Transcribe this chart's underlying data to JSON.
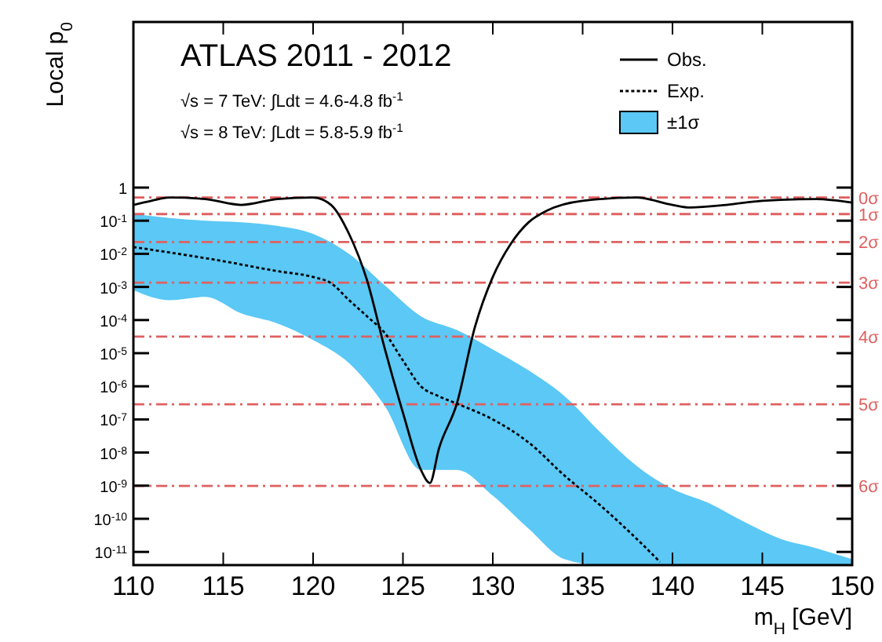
{
  "chart_data": {
    "type": "line",
    "xlabel": "m$_{H}$ [GeV]",
    "ylabel": "Local p$_{0}$",
    "log": "y",
    "grid": false,
    "legend": "top right",
    "xlim": [
      110,
      150
    ],
    "xticks": [
      110,
      115,
      120,
      125,
      130,
      135,
      140,
      145,
      150
    ],
    "ylim": [
      4e-12,
      100000.0
    ],
    "yticks": [
      {
        "value": 1,
        "label": "1"
      },
      {
        "value": 0.1,
        "label": "10$^{-1}$"
      },
      {
        "value": 0.01,
        "label": "10$^{-2}$"
      },
      {
        "value": 0.001,
        "label": "10$^{-3}$"
      },
      {
        "value": 0.0001,
        "label": "10$^{-4}$"
      },
      {
        "value": 1e-05,
        "label": "10$^{-5}$"
      },
      {
        "value": 1e-06,
        "label": "10$^{-6}$"
      },
      {
        "value": 1e-07,
        "label": "10$^{-7}$"
      },
      {
        "value": 1e-08,
        "label": "10$^{-8}$"
      },
      {
        "value": 1e-09,
        "label": "10$^{-9}$"
      },
      {
        "value": 1e-10,
        "label": "10$^{-10}$"
      },
      {
        "value": 1e-11,
        "label": "10$^{-11}$"
      }
    ],
    "series": [
      {
        "name": "±1σ",
        "type": "area",
        "color": "#5bc8f5",
        "x": [
          110,
          112,
          114,
          116,
          118,
          120,
          122,
          124,
          126,
          128,
          130,
          132,
          134,
          136,
          138,
          139.3,
          140,
          142,
          144,
          146,
          148,
          150
        ],
        "values": [
          null,
          null,
          null,
          null,
          null,
          null,
          null,
          null,
          null,
          null,
          null,
          null,
          null,
          null,
          null,
          null,
          null,
          null,
          null,
          null,
          null,
          null
        ],
        "upper": [
          0.16,
          0.12,
          0.1,
          0.09,
          0.07,
          0.04,
          0.01,
          0.0011,
          0.00013,
          5e-05,
          1.3e-05,
          3e-06,
          5e-07,
          4e-08,
          4e-09,
          1.3e-09,
          8e-10,
          3e-10,
          8e-11,
          2.5e-11,
          1.3e-11,
          6e-12
        ],
        "lower": [
          0.0008,
          0.0004,
          0.0005,
          0.00016,
          8e-05,
          2.5e-05,
          5e-06,
          2.5e-07,
          3e-09,
          3e-09,
          5e-10,
          5e-11,
          6e-12,
          4e-12,
          4e-12,
          4e-12,
          4e-12,
          4e-12,
          4e-12,
          4e-12,
          4e-12,
          4e-12
        ]
      },
      {
        "name": "Exp.",
        "color": "#000000",
        "line_style": "dotted",
        "x": [
          110,
          112,
          115,
          118,
          120,
          121,
          122,
          123,
          124,
          125,
          126,
          127,
          128,
          130,
          132,
          134,
          136,
          138,
          139.3
        ],
        "values": [
          0.016,
          0.011,
          0.006,
          0.003,
          0.002,
          0.0013,
          0.0004,
          0.00013,
          4e-05,
          6e-06,
          1e-06,
          5e-07,
          3e-07,
          1e-07,
          2e-08,
          2e-09,
          2.5e-10,
          2.5e-11,
          5e-12
        ]
      },
      {
        "name": "Obs.",
        "color": "#000000",
        "line_style": "solid",
        "x": [
          110,
          111,
          112,
          114,
          116,
          118,
          120,
          121,
          122,
          123,
          124,
          125,
          126,
          126.5,
          127,
          128,
          129,
          130,
          131,
          132,
          133,
          135,
          138,
          140,
          141,
          143,
          145,
          148,
          150
        ],
        "values": [
          0.3,
          0.4,
          0.5,
          0.45,
          0.3,
          0.45,
          0.5,
          0.3,
          0.04,
          0.0016,
          1.3e-05,
          1.6e-07,
          3e-09,
          1.2e-09,
          1.3e-08,
          3e-07,
          6e-05,
          0.002,
          0.02,
          0.09,
          0.2,
          0.4,
          0.5,
          0.3,
          0.25,
          0.3,
          0.4,
          0.45,
          0.35
        ]
      }
    ],
    "ref_lines": [
      {
        "axis": "y",
        "value": 0.5,
        "label": "0σ",
        "color": "#e06060",
        "line_style": "dashed"
      },
      {
        "axis": "y",
        "value": 0.1587,
        "label": "1σ",
        "color": "#e06060",
        "line_style": "dashed"
      },
      {
        "axis": "y",
        "value": 0.02275,
        "label": "2σ",
        "color": "#e06060",
        "line_style": "dashed"
      },
      {
        "axis": "y",
        "value": 0.00135,
        "label": "3σ",
        "color": "#e06060",
        "line_style": "dashed"
      },
      {
        "axis": "y",
        "value": 3.17e-05,
        "label": "4σ",
        "color": "#e06060",
        "line_style": "dashed"
      },
      {
        "axis": "y",
        "value": 2.87e-07,
        "label": "5σ",
        "color": "#e06060",
        "line_style": "dashed"
      },
      {
        "axis": "y",
        "value": 9.87e-10,
        "label": "6σ",
        "color": "#e06060",
        "line_style": "dashed"
      }
    ],
    "annotations": [
      "ATLAS 2011 - 2012",
      "√s = 7 TeV: ∫Ldt = 4.6-4.8 fb$^{-1}$",
      "√s = 8 TeV: ∫Ldt = 5.8-5.9 fb$^{-1}$"
    ]
  }
}
